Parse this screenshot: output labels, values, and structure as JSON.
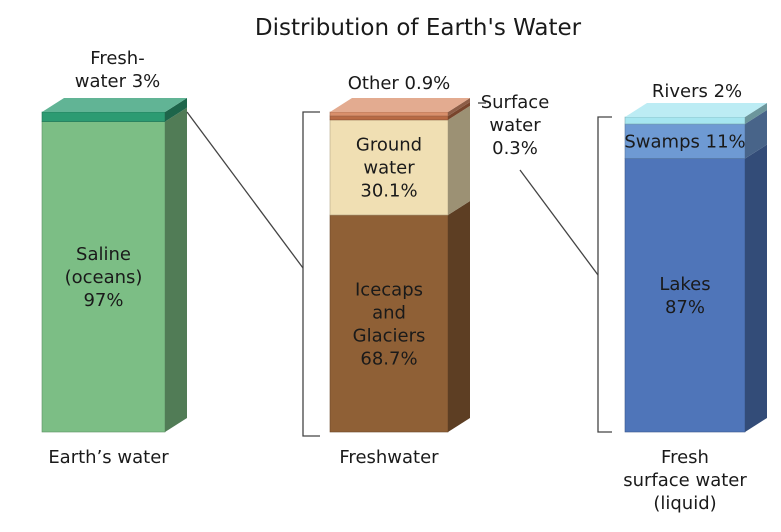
{
  "chart_data": {
    "type": "bar",
    "title": "Distribution of Earth's Water",
    "charts": [
      {
        "name": "Earth’s water",
        "segments": [
          {
            "label": [
              "Saline",
              "(oceans)",
              "97%"
            ],
            "value": 97,
            "color": "#7cbe85",
            "label_position": "inside"
          },
          {
            "label": [
              "Fresh-",
              "water 3%"
            ],
            "value": 3,
            "color": "#2c9b72",
            "label_position": "above"
          }
        ]
      },
      {
        "name": "Freshwater",
        "segments": [
          {
            "label": [
              "Icecaps",
              "and",
              "Glaciers",
              "68.7%"
            ],
            "value": 68.7,
            "color": "#8f6036",
            "label_position": "inside"
          },
          {
            "label": [
              "Ground",
              "water",
              "30.1%"
            ],
            "value": 30.1,
            "color": "#f0dfb3",
            "label_position": "inside"
          },
          {
            "label": [
              "Surface",
              "water",
              "0.3%"
            ],
            "value": 0.3,
            "color": "#b86a44",
            "label_position": "right"
          },
          {
            "label": [
              "Other 0.9%"
            ],
            "value": 0.9,
            "color": "#d98f6b",
            "label_position": "above"
          }
        ]
      },
      {
        "name": [
          "Fresh",
          "surface water",
          "(liquid)"
        ],
        "segments": [
          {
            "label": [
              "Lakes",
              "87%"
            ],
            "value": 87,
            "color": "#4f75b9",
            "label_position": "inside"
          },
          {
            "label": [
              "Swamps 11%"
            ],
            "value": 11,
            "color": "#6e9ad3",
            "label_position": "inside"
          },
          {
            "label": [
              "Rivers 2%"
            ],
            "value": 2,
            "color": "#a6e6f0",
            "label_position": "above"
          }
        ]
      }
    ]
  }
}
